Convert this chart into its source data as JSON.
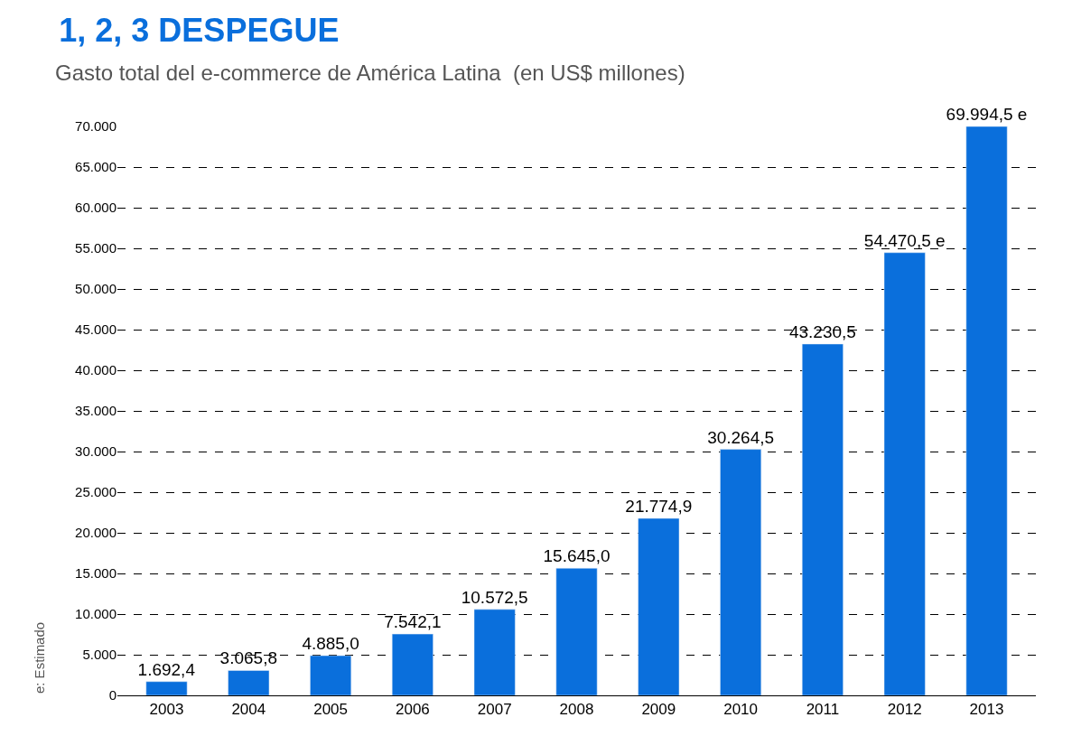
{
  "chart_data": {
    "type": "bar",
    "title": "1, 2, 3 DESPEGUE",
    "subtitle": "Gasto total del e-commerce de América Latina  (en US$ millones)",
    "categories": [
      "2003",
      "2004",
      "2005",
      "2006",
      "2007",
      "2008",
      "2009",
      "2010",
      "2011",
      "2012",
      "2013"
    ],
    "values": [
      1692.4,
      3065.8,
      4885.0,
      7542.1,
      10572.5,
      15645.0,
      21774.9,
      30264.5,
      43230.5,
      54470.5,
      69994.5
    ],
    "value_labels": [
      "1.692,4",
      "3.065,8",
      "4.885,0",
      "7.542,1",
      "10.572,5",
      "15.645,0",
      "21.774,9",
      "30.264,5",
      "43.230,5",
      "54.470,5 e",
      "69.994,5 e"
    ],
    "color": "#0a6fdc",
    "ylim": [
      0,
      70000
    ],
    "yticks": [
      0,
      {
        "value": 5000,
        "label": "5.000"
      },
      {
        "value": 10000,
        "label": "10.000"
      },
      {
        "value": 15000,
        "label": "15.000"
      },
      {
        "value": 20000,
        "label": "20.000"
      },
      {
        "value": 25000,
        "label": "25.000"
      },
      {
        "value": 30000,
        "label": "30.000"
      },
      {
        "value": 35000,
        "label": "35.000"
      },
      {
        "value": 40000,
        "label": "40.000"
      },
      {
        "value": 45000,
        "label": "45.000"
      },
      {
        "value": 50000,
        "label": "50.000"
      },
      {
        "value": 55000,
        "label": "55.000"
      },
      {
        "value": 60000,
        "label": "60.000"
      },
      {
        "value": 65000,
        "label": "65.000"
      },
      {
        "value": 70000,
        "label": "70.000"
      }
    ],
    "grid": "y",
    "legend": false,
    "annotations": [
      "e: Estimado"
    ]
  }
}
